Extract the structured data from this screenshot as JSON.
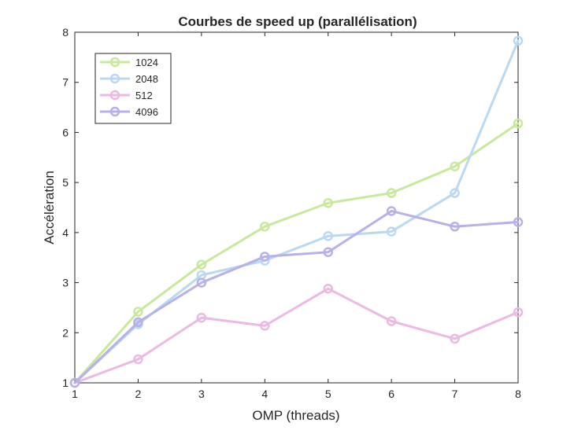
{
  "chart_data": {
    "type": "line",
    "title": "Courbes de speed up (parallélisation)",
    "xlabel": "OMP (threads)",
    "ylabel": "Accélération",
    "xlim": [
      1,
      8
    ],
    "ylim": [
      1,
      8
    ],
    "xticks": [
      "1",
      "2",
      "3",
      "4",
      "5",
      "6",
      "7",
      "8"
    ],
    "yticks": [
      "1",
      "2",
      "3",
      "4",
      "5",
      "6",
      "7",
      "8"
    ],
    "grid": false,
    "legend_position": "top-left",
    "x": [
      1,
      2,
      3,
      4,
      5,
      6,
      7,
      8
    ],
    "series": [
      {
        "name": "1024",
        "color": "#c8e89c",
        "marker": "circle",
        "values": [
          1.0,
          2.42,
          3.36,
          4.12,
          4.59,
          4.79,
          5.32,
          6.18
        ]
      },
      {
        "name": "2048",
        "color": "#b8d8f4",
        "marker": "circle",
        "values": [
          1.0,
          2.17,
          3.15,
          3.44,
          3.93,
          4.02,
          4.79,
          7.83
        ]
      },
      {
        "name": "512",
        "color": "#ecb8e4",
        "marker": "circle",
        "values": [
          1.0,
          1.47,
          2.3,
          2.14,
          2.88,
          2.23,
          1.88,
          2.41
        ]
      },
      {
        "name": "4096",
        "color": "#b8b0e8",
        "marker": "circle",
        "values": [
          1.0,
          2.21,
          3.0,
          3.52,
          3.61,
          4.43,
          4.12,
          4.21
        ]
      }
    ]
  }
}
